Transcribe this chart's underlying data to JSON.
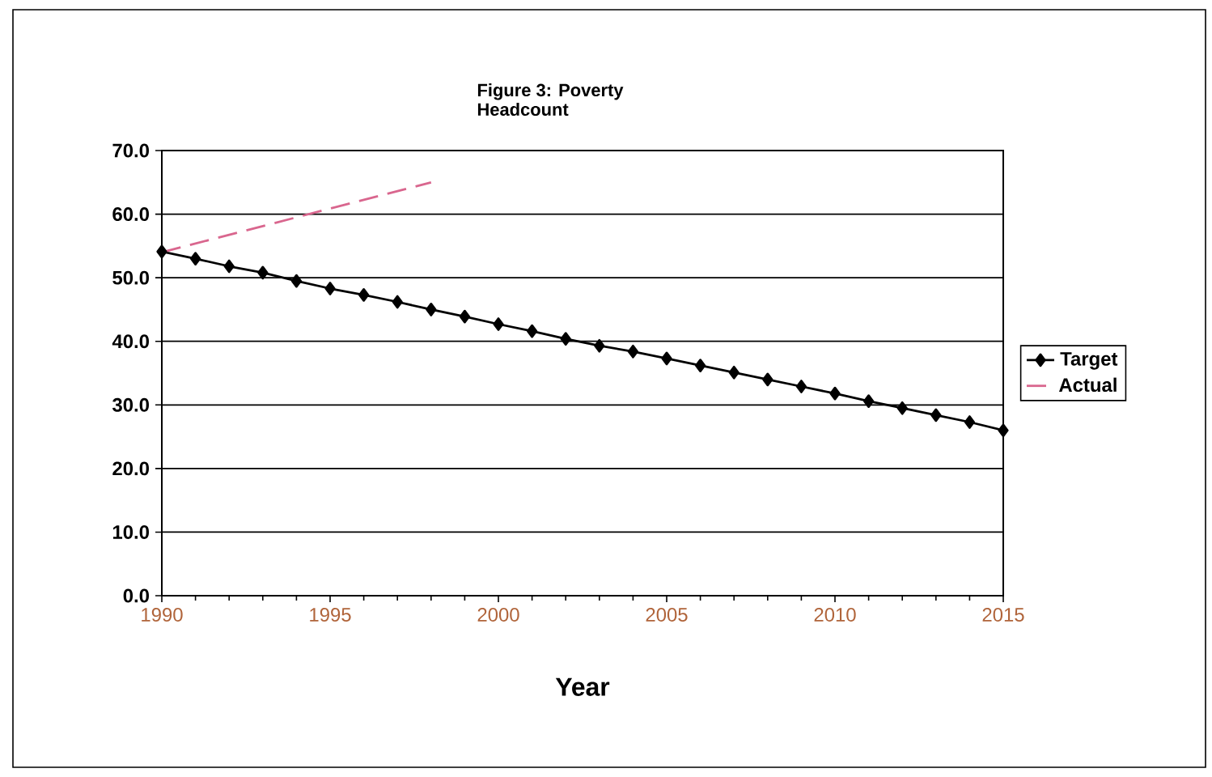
{
  "chart_data": {
    "type": "line",
    "title": "Figure 3: Poverty\nHeadcount",
    "xlabel": "Year",
    "x": [
      1990,
      1991,
      1992,
      1993,
      1994,
      1995,
      1996,
      1997,
      1998,
      1999,
      2000,
      2001,
      2002,
      2003,
      2004,
      2005,
      2006,
      2007,
      2008,
      2009,
      2010,
      2011,
      2012,
      2013,
      2014,
      2015
    ],
    "series": [
      {
        "name": "Target",
        "color": "#000000",
        "marker": "diamond",
        "line_style": "solid",
        "values": [
          54.1,
          53.0,
          51.8,
          50.8,
          49.5,
          48.3,
          47.3,
          46.2,
          45.0,
          43.9,
          42.7,
          41.6,
          40.4,
          39.3,
          38.4,
          37.3,
          36.2,
          35.1,
          34.0,
          32.9,
          31.8,
          30.6,
          29.5,
          28.4,
          27.3,
          26.0
        ]
      },
      {
        "name": "Actual",
        "color": "#d9668e",
        "marker": "none",
        "line_style": "dashed",
        "x": [
          1990,
          1998
        ],
        "values": [
          54.0,
          65.0
        ]
      }
    ],
    "xlim": [
      1990,
      2015
    ],
    "xticks": [
      1990,
      1995,
      2000,
      2005,
      2010,
      2015
    ],
    "ylim": [
      0,
      70
    ],
    "yticks": [
      {
        "value": 0,
        "label": "0.0"
      },
      {
        "value": 10,
        "label": "10.0"
      },
      {
        "value": 20,
        "label": "20.0"
      },
      {
        "value": 30,
        "label": "30.0"
      },
      {
        "value": 40,
        "label": "40.0"
      },
      {
        "value": 50,
        "label": "50.0"
      },
      {
        "value": 60,
        "label": "60.0"
      },
      {
        "value": 70,
        "label": "70.0"
      }
    ],
    "grid": "y",
    "legend": "right"
  }
}
